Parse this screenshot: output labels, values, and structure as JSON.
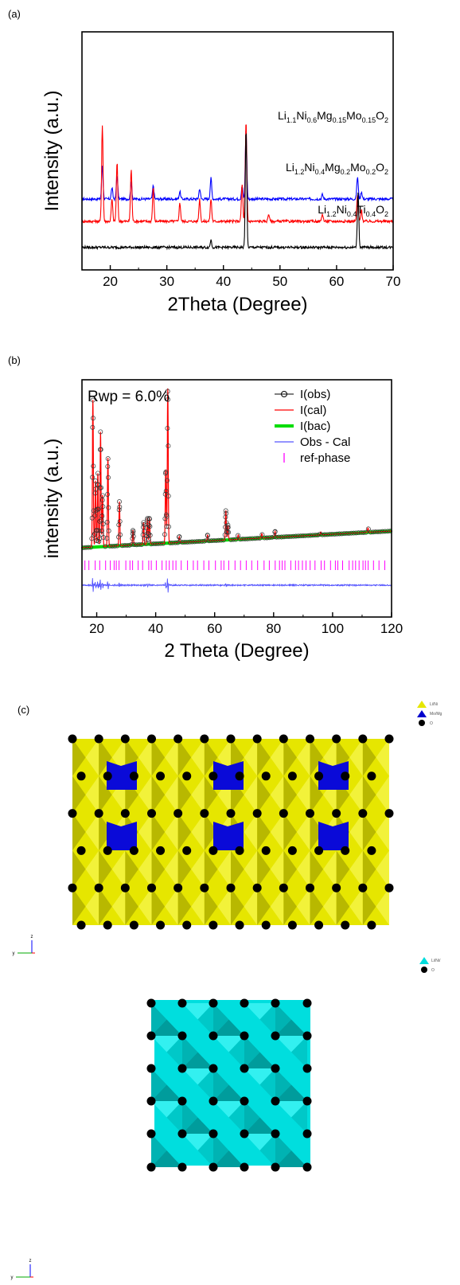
{
  "panels": {
    "a": "(a)",
    "b": "(b)",
    "c": "(c)"
  },
  "chart_data": [
    {
      "type": "line",
      "xlabel": "2Theta (Degree)",
      "ylabel": "Intensity (a.u.)",
      "xlim": [
        15,
        70
      ],
      "xticks": [
        20,
        30,
        40,
        50,
        60,
        70
      ],
      "series": [
        {
          "name": "Li1.1Ni0.6Mg0.15Mo0.15O2",
          "label_parts": [
            [
              "Li",
              ""
            ],
            [
              "1.1",
              "sub"
            ],
            [
              "Ni",
              ""
            ],
            [
              "0.6",
              "sub"
            ],
            [
              "Mg",
              ""
            ],
            [
              "0.15",
              "sub"
            ],
            [
              "Mo",
              ""
            ],
            [
              "0.15",
              "sub"
            ],
            [
              "O",
              ""
            ],
            [
              "2",
              "sub"
            ]
          ],
          "color": "#0000ff",
          "baseline": 0.7,
          "peaks": [
            [
              18.6,
              0.45
            ],
            [
              20.3,
              0.15
            ],
            [
              21.2,
              0.32
            ],
            [
              23.7,
              0.22
            ],
            [
              27.6,
              0.18
            ],
            [
              32.3,
              0.1
            ],
            [
              35.8,
              0.14
            ],
            [
              37.8,
              0.28
            ],
            [
              43.3,
              0.18
            ],
            [
              44.0,
              0.95
            ],
            [
              57.5,
              0.06
            ],
            [
              63.7,
              0.3
            ],
            [
              64.4,
              0.1
            ]
          ]
        },
        {
          "name": "Li1.2Ni0.4Mg0.2Mo0.2O2",
          "label_parts": [
            [
              "Li",
              ""
            ],
            [
              "1.2",
              "sub"
            ],
            [
              "Ni",
              ""
            ],
            [
              "0.4",
              "sub"
            ],
            [
              "Mg",
              ""
            ],
            [
              "0.2",
              "sub"
            ],
            [
              "Mo",
              ""
            ],
            [
              "0.2",
              "sub"
            ],
            [
              "O",
              ""
            ],
            [
              "2",
              "sub"
            ]
          ],
          "color": "#ff0000",
          "baseline": 0.4,
          "peaks": [
            [
              18.6,
              1.3
            ],
            [
              20.3,
              0.3
            ],
            [
              21.2,
              0.8
            ],
            [
              23.7,
              0.7
            ],
            [
              27.6,
              0.45
            ],
            [
              32.3,
              0.25
            ],
            [
              35.8,
              0.3
            ],
            [
              37.8,
              0.3
            ],
            [
              43.3,
              0.5
            ],
            [
              44.0,
              1.35
            ],
            [
              48.0,
              0.1
            ],
            [
              57.5,
              0.1
            ],
            [
              63.7,
              0.35
            ],
            [
              64.4,
              0.15
            ]
          ]
        },
        {
          "name": "Li1.2Ni0.4Ti0.4O2",
          "label_parts": [
            [
              "Li",
              ""
            ],
            [
              "1.2",
              "sub"
            ],
            [
              "Ni",
              ""
            ],
            [
              "0.4",
              "sub"
            ],
            [
              "Ti",
              ""
            ],
            [
              "0.4",
              "sub"
            ],
            [
              "O",
              ""
            ],
            [
              "2",
              "sub"
            ]
          ],
          "color": "#000000",
          "baseline": 0.05,
          "peaks": [
            [
              37.8,
              0.1
            ],
            [
              44.0,
              1.6
            ],
            [
              63.8,
              0.75
            ]
          ]
        }
      ]
    },
    {
      "type": "scatter",
      "xlabel": "2 Theta (Degree)",
      "ylabel": "intensity (a.u.)",
      "xlim": [
        15,
        120
      ],
      "xticks": [
        20,
        40,
        60,
        80,
        100,
        120
      ],
      "annotation": "Rwp = 6.0%",
      "peaks": [
        [
          18.7,
          1.0
        ],
        [
          19.6,
          0.45
        ],
        [
          20.4,
          0.5
        ],
        [
          21.3,
          0.78
        ],
        [
          22.0,
          0.35
        ],
        [
          23.8,
          0.6
        ],
        [
          27.7,
          0.3
        ],
        [
          32.3,
          0.1
        ],
        [
          35.9,
          0.15
        ],
        [
          37.2,
          0.18
        ],
        [
          37.9,
          0.18
        ],
        [
          43.4,
          0.5
        ],
        [
          44.1,
          1.05
        ],
        [
          48.0,
          0.04
        ],
        [
          57.6,
          0.04
        ],
        [
          63.8,
          0.2
        ],
        [
          64.5,
          0.1
        ],
        [
          68.0,
          0.03
        ],
        [
          76.0,
          0.03
        ],
        [
          80.5,
          0.04
        ],
        [
          96.0,
          0.02
        ],
        [
          112.0,
          0.03
        ]
      ],
      "legend": [
        {
          "name": "I(obs)",
          "color": "#000000"
        },
        {
          "name": "I(cal)",
          "color": "#ff0000"
        },
        {
          "name": "I(bac)",
          "color": "#00dd00"
        },
        {
          "name": "Obs - Cal",
          "color": "#5555ff"
        },
        {
          "name": "ref-phase",
          "color": "#ff00ff"
        }
      ]
    }
  ],
  "structures": [
    {
      "legend": [
        {
          "label": "Li/Ni",
          "color": "#e6e600"
        },
        {
          "label": "Mo/Mg",
          "color": "#0000cc"
        },
        {
          "label": "O",
          "color": "#000000"
        }
      ],
      "axis_labels": {
        "up": "z",
        "left": "y"
      }
    },
    {
      "legend": [
        {
          "label": "Li/Ni/",
          "color": "#00dddd"
        },
        {
          "label": "O",
          "color": "#000000"
        }
      ],
      "axis_labels": {
        "up": "z",
        "left": "y"
      }
    }
  ]
}
